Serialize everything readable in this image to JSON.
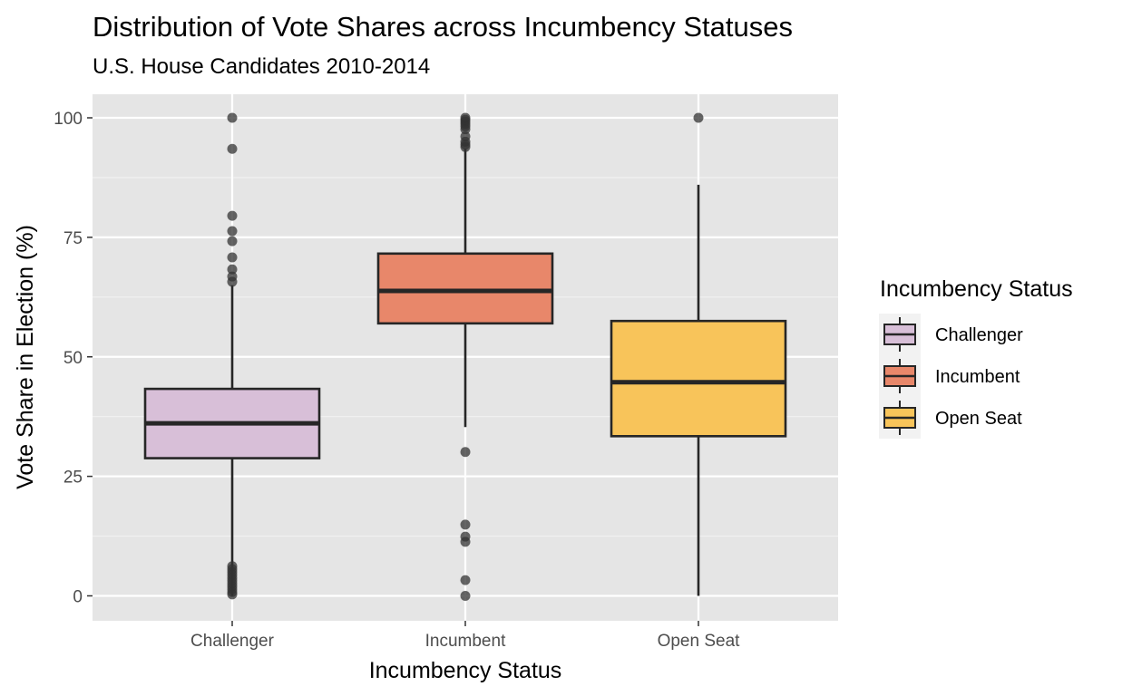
{
  "chart_data": {
    "type": "boxplot",
    "title": "Distribution of Vote Shares across Incumbency Statuses",
    "subtitle": "U.S. House Candidates 2010-2014",
    "xlabel": "Incumbency Status",
    "ylabel": "Vote Share in Election (%)",
    "ylim": [
      -5,
      105
    ],
    "yticks": [
      0,
      25,
      50,
      75,
      100
    ],
    "grid": true,
    "legend_title": "Incumbency Status",
    "legend_position": "right",
    "categories": [
      "Challenger",
      "Incumbent",
      "Open Seat"
    ],
    "series": [
      {
        "name": "Challenger",
        "color": "#d8bfd8",
        "whisker_low": 0,
        "q1": 28.8,
        "median": 36.1,
        "q3": 43.3,
        "whisker_high": 65,
        "outliers": [
          100,
          93.5,
          79.5,
          76.3,
          74.2,
          70.8,
          68.3,
          66.8,
          65.7,
          6.2,
          5.6,
          5.0,
          4.4,
          3.8,
          3.2,
          2.6,
          2.0,
          1.4,
          0.8,
          0.3
        ]
      },
      {
        "name": "Incumbent",
        "color": "#e8876a",
        "whisker_low": 35.3,
        "q1": 57.0,
        "median": 63.8,
        "q3": 71.6,
        "whisker_high": 93.5,
        "outliers": [
          100,
          99.6,
          99.2,
          98.7,
          98.2,
          97.6,
          96.1,
          95.0,
          94.4,
          93.9,
          30.1,
          14.9,
          12.4,
          11.3,
          3.3,
          0
        ]
      },
      {
        "name": "Open Seat",
        "color": "#f8c45a",
        "whisker_low": 0,
        "q1": 33.4,
        "median": 44.7,
        "q3": 57.5,
        "whisker_high": 86.0,
        "outliers": [
          100
        ]
      }
    ]
  }
}
